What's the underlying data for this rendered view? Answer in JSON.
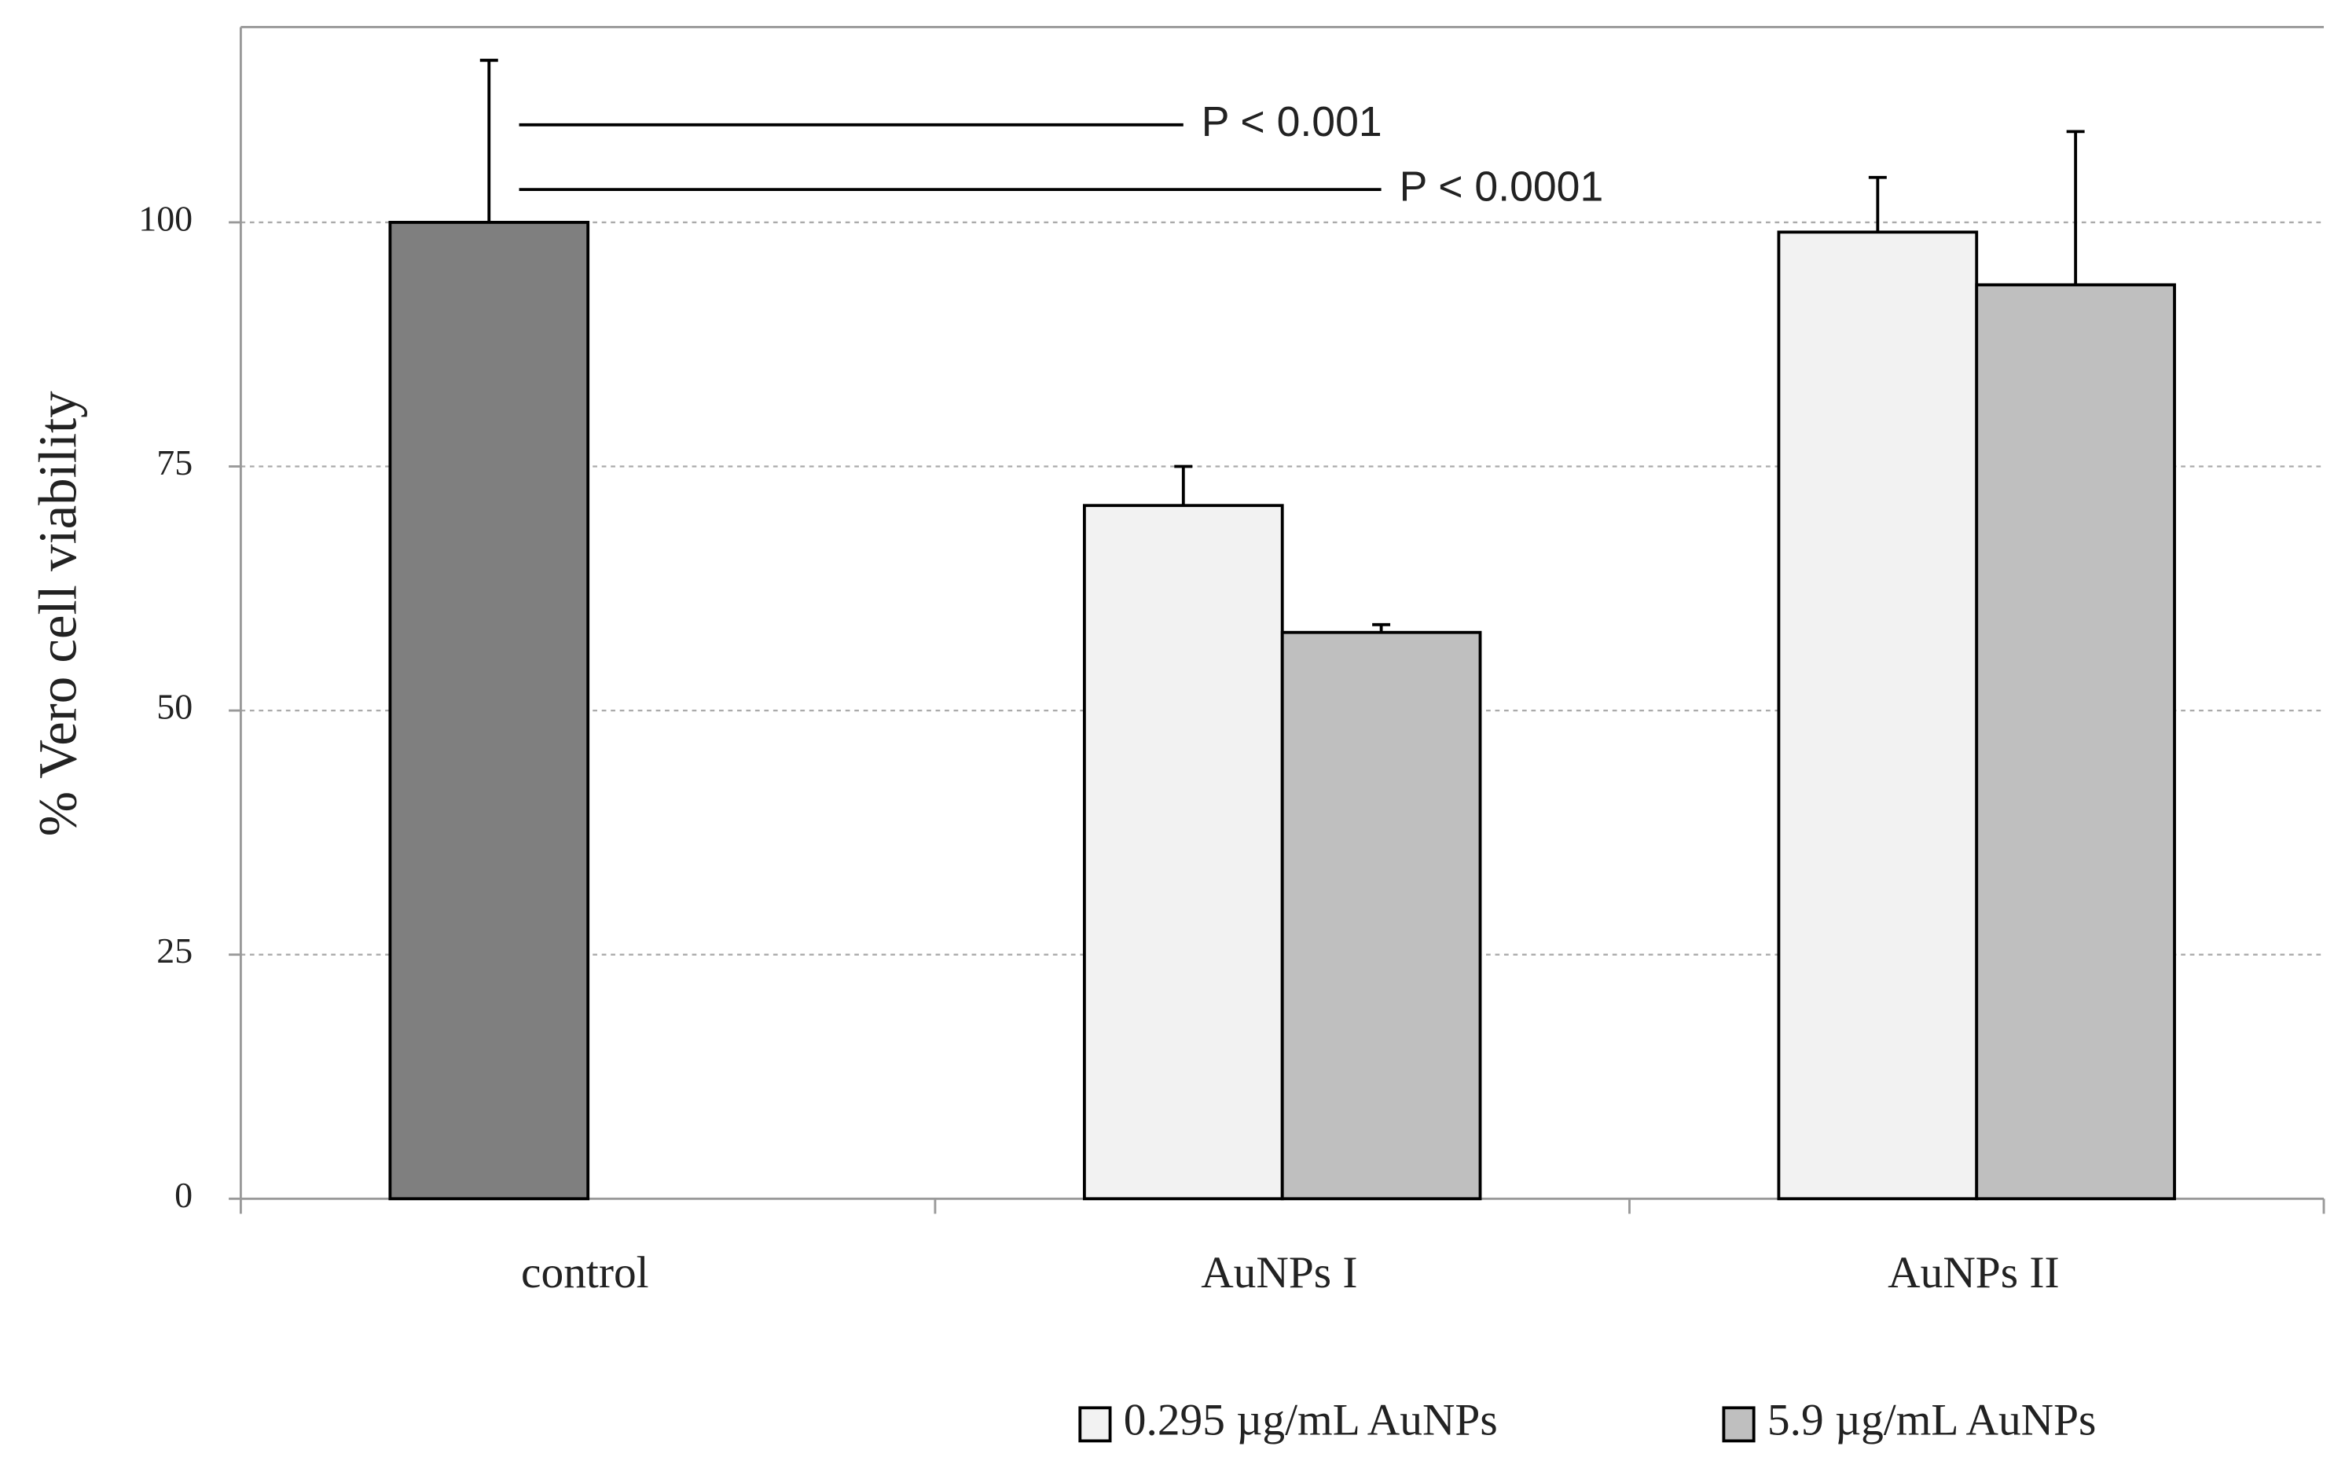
{
  "chart_data": {
    "type": "bar",
    "y_label": "% Vero cell viability",
    "categories": [
      "control",
      "AuNPs I",
      "AuNPs II"
    ],
    "series": [
      {
        "name": "0.295 µg/mL AuNPs",
        "color": "#f2f2f2",
        "point_colors": [
          "#7f7f7f",
          "#f2f2f2",
          "#f2f2f2"
        ],
        "values": [
          100,
          71,
          99
        ],
        "errors": [
          16.6,
          4,
          5.6
        ]
      },
      {
        "name": "5.9 µg/mL AuNPs",
        "color": "#bfbfbf",
        "values": [
          null,
          58,
          93.6
        ],
        "errors": [
          null,
          0.8,
          15.7
        ]
      }
    ],
    "ylim": [
      0,
      120
    ],
    "yticks": [
      0,
      25,
      50,
      75,
      100
    ],
    "grid": true,
    "annotations": [
      "P < 0.001",
      "P < 0.0001"
    ]
  }
}
